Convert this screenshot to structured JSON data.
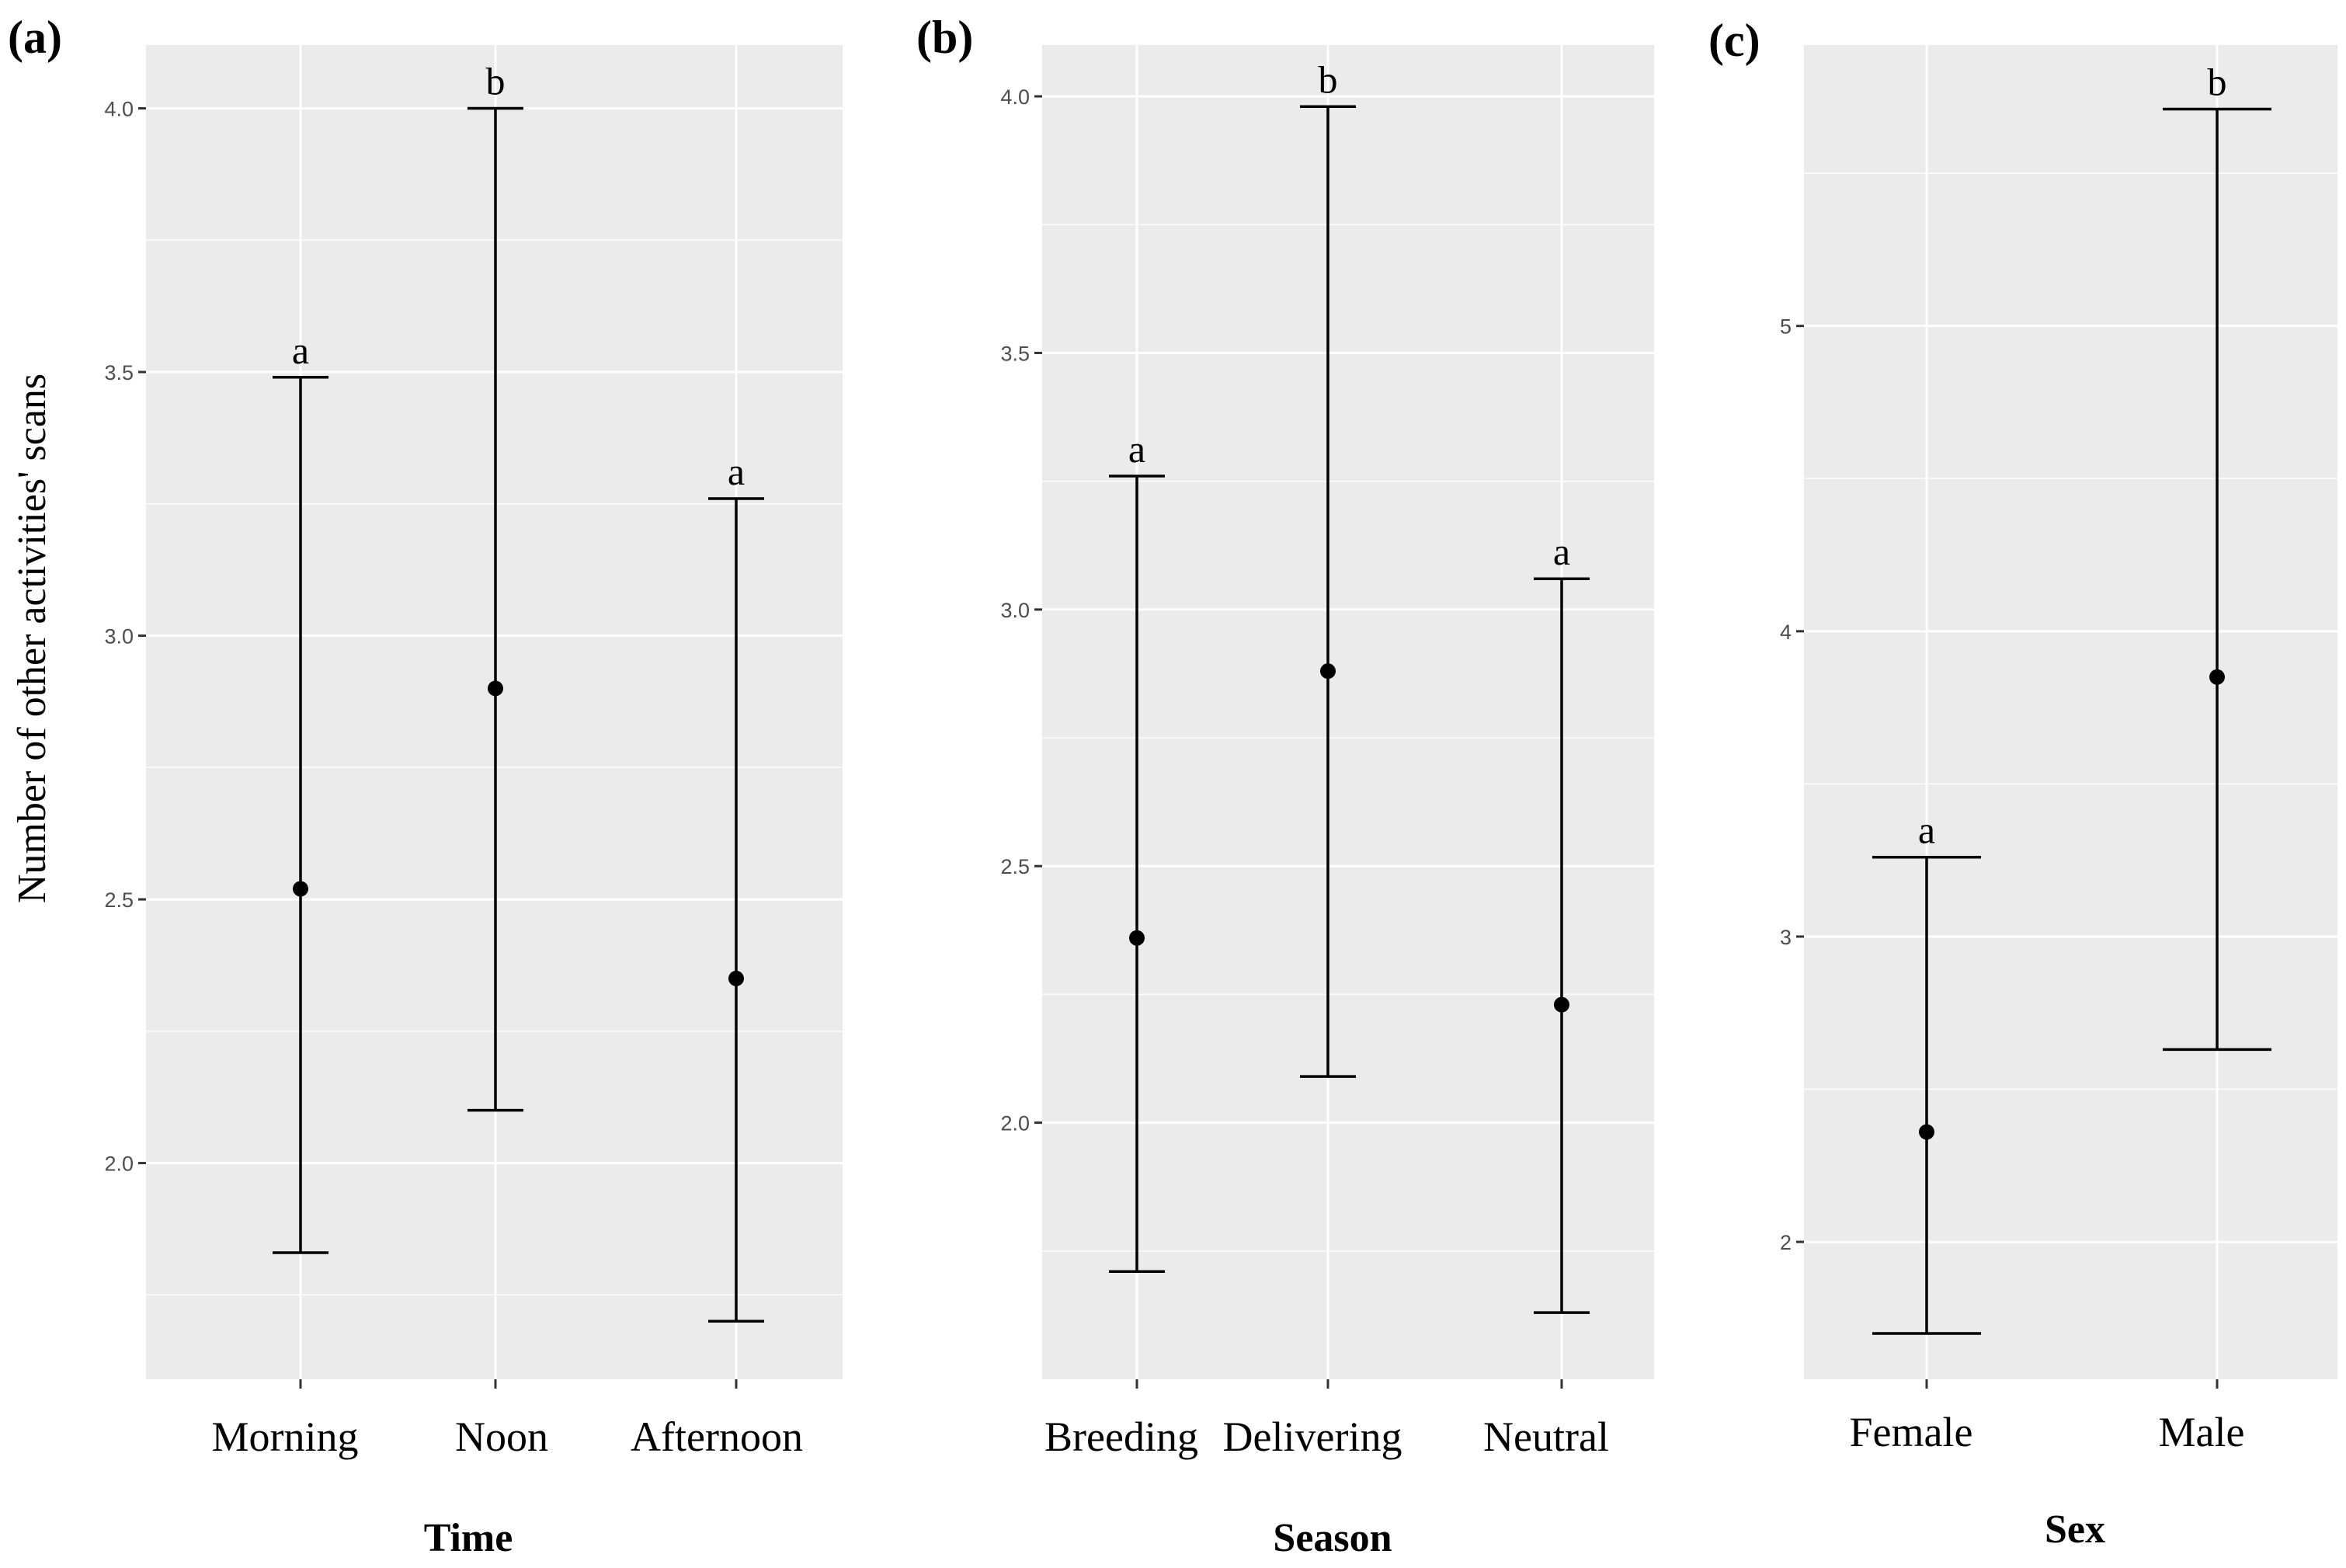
{
  "y_axis_title": "Number of other activities' scans",
  "chart_data": [
    {
      "type": "errorbar",
      "panel_label": "(a)",
      "xlabel": "Time",
      "ylabel": "Number of other activities' scans",
      "ylim": [
        1.59,
        4.12
      ],
      "y_major_ticks": [
        2.0,
        2.5,
        3.0,
        3.5,
        4.0
      ],
      "y_tick_labels": [
        "2.0",
        "2.5",
        "3.0",
        "3.5",
        "4.0"
      ],
      "y_minor_ticks": [
        1.75,
        2.25,
        2.75,
        3.25,
        3.75
      ],
      "categories": [
        "Morning",
        "Noon",
        "Afternoon"
      ],
      "means": [
        2.52,
        2.9,
        2.35
      ],
      "lower": [
        1.83,
        2.1,
        1.7
      ],
      "upper": [
        3.49,
        4.0,
        3.26
      ],
      "significance_letters": [
        "a",
        "b",
        "a"
      ]
    },
    {
      "type": "errorbar",
      "panel_label": "(b)",
      "xlabel": "Season",
      "ylabel": "",
      "ylim": [
        1.5,
        4.1
      ],
      "y_major_ticks": [
        2.0,
        2.5,
        3.0,
        3.5,
        4.0
      ],
      "y_tick_labels": [
        "2.0",
        "2.5",
        "3.0",
        "3.5",
        "4.0"
      ],
      "y_minor_ticks": [
        1.75,
        2.25,
        2.75,
        3.25,
        3.75
      ],
      "categories": [
        "Breeding",
        "Delivering",
        "Neutral"
      ],
      "means": [
        2.36,
        2.88,
        2.23
      ],
      "lower": [
        1.71,
        2.09,
        1.63
      ],
      "upper": [
        3.26,
        3.98,
        3.06
      ],
      "significance_letters": [
        "a",
        "b",
        "a"
      ]
    },
    {
      "type": "errorbar",
      "panel_label": "(c)",
      "xlabel": "Sex",
      "ylabel": "",
      "ylim": [
        1.55,
        5.92
      ],
      "y_major_ticks": [
        2,
        3,
        4,
        5
      ],
      "y_tick_labels": [
        "2",
        "3",
        "4",
        "5"
      ],
      "y_minor_ticks": [
        2.5,
        3.5,
        4.5,
        5.5
      ],
      "categories": [
        "Female",
        "Male"
      ],
      "means": [
        2.36,
        3.85
      ],
      "lower": [
        1.7,
        2.63
      ],
      "upper": [
        3.26,
        5.71
      ],
      "significance_letters": [
        "a",
        "b"
      ]
    }
  ]
}
